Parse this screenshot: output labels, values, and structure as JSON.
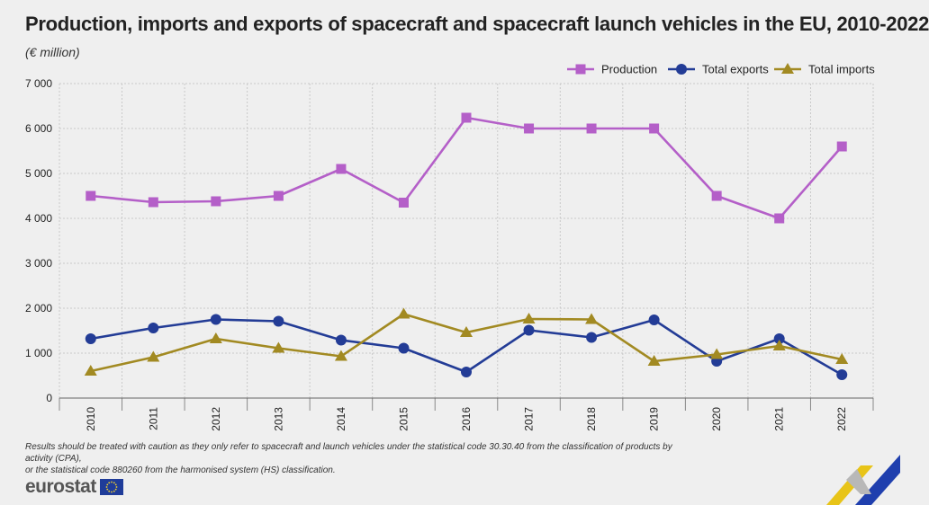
{
  "header": {
    "title": "Production, imports and exports of spacecraft and spacecraft launch vehicles in the EU, 2010-2022",
    "unit": "(€ million)"
  },
  "footer": {
    "note_line1": "Results should be treated with caution as they only refer to spacecraft and launch vehicles under the statistical code 30.30.40 from the classification of products by activity (CPA),",
    "note_line2": "or the statistical code 880260 from the harmonised system (HS) classification.",
    "logo": "eurostat"
  },
  "colors": {
    "production": "#b45fc8",
    "exports": "#233c96",
    "imports": "#a28a22",
    "grid": "#c9c9c9",
    "background": "#efefef"
  },
  "chart_data": {
    "type": "line",
    "title": "Production, imports and exports of spacecraft and spacecraft launch vehicles in the EU, 2010-2022",
    "xlabel": "",
    "ylabel": "€ million",
    "ylim": [
      0,
      7000
    ],
    "yticks": [
      0,
      1000,
      2000,
      3000,
      4000,
      5000,
      6000,
      7000
    ],
    "ytick_labels": [
      "0",
      "1 000",
      "2 000",
      "3 000",
      "4 000",
      "5 000",
      "6 000",
      "7 000"
    ],
    "grid": true,
    "legend_position": "top-right",
    "categories": [
      "2010",
      "2011",
      "2012",
      "2013",
      "2014",
      "2015",
      "2016",
      "2017",
      "2018",
      "2019",
      "2020",
      "2021",
      "2022"
    ],
    "series": [
      {
        "name": "Production",
        "marker": "square",
        "color": "#b45fc8",
        "values": [
          4500,
          4360,
          4380,
          4500,
          5100,
          4350,
          6240,
          6000,
          6000,
          6000,
          4500,
          4000,
          5600
        ]
      },
      {
        "name": "Total exports",
        "marker": "circle",
        "color": "#233c96",
        "values": [
          1320,
          1560,
          1750,
          1710,
          1290,
          1110,
          580,
          1510,
          1350,
          1740,
          820,
          1320,
          520
        ]
      },
      {
        "name": "Total imports",
        "marker": "triangle",
        "color": "#a28a22",
        "values": [
          600,
          910,
          1320,
          1110,
          930,
          1870,
          1460,
          1760,
          1750,
          820,
          970,
          1160,
          860
        ]
      }
    ]
  }
}
